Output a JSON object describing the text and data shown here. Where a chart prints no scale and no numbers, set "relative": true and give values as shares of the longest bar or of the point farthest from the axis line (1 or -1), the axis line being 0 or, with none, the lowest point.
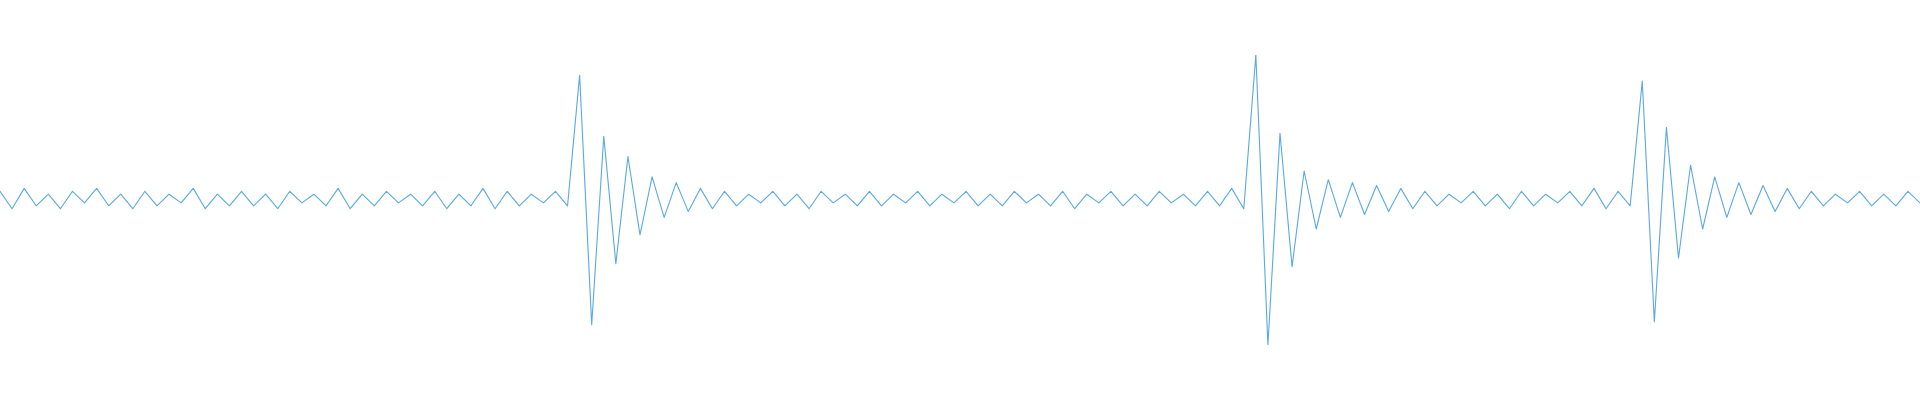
{
  "chart_data": {
    "type": "line",
    "relative": true,
    "categories": [
      null,
      null,
      null,
      null,
      null,
      null,
      null,
      null,
      null,
      null,
      null,
      null,
      null,
      null,
      null,
      null,
      null,
      null,
      null,
      null,
      null,
      null,
      null,
      null,
      null,
      null,
      null,
      null,
      null,
      null,
      null,
      null,
      null,
      null,
      null,
      null,
      null,
      null,
      null,
      null,
      null,
      null,
      null,
      null,
      null,
      null,
      null,
      null,
      null,
      null,
      null,
      null,
      null,
      null,
      null,
      null,
      null,
      null,
      null,
      null,
      null,
      null,
      null,
      null,
      null,
      null,
      null,
      null,
      null,
      null,
      null,
      null,
      null,
      null,
      null,
      null,
      null,
      null,
      null,
      null,
      null,
      null,
      null,
      null,
      null,
      null,
      null,
      null,
      null,
      null,
      null,
      null,
      null,
      null,
      null,
      null,
      null,
      null,
      null,
      null,
      null,
      null,
      null,
      null,
      null,
      null,
      null,
      null,
      null,
      null,
      null,
      null,
      null,
      null,
      null,
      null,
      null,
      null,
      null,
      null,
      null,
      null,
      null,
      null,
      null,
      null,
      null,
      null,
      null,
      null,
      null,
      null,
      null,
      null,
      null,
      null,
      null,
      null,
      null,
      null,
      null,
      null,
      null,
      null,
      null,
      null,
      null,
      null,
      null,
      null,
      null,
      null,
      null,
      null,
      null,
      null,
      null,
      null,
      null,
      null
    ],
    "series": [
      {
        "color": "#5aa9e6",
        "values": [
          0.53,
          0.47,
          0.54,
          0.48,
          0.52,
          0.47,
          0.53,
          0.49,
          0.54,
          0.48,
          0.52,
          0.47,
          0.53,
          0.48,
          0.52,
          0.49,
          0.54,
          0.47,
          0.52,
          0.48,
          0.53,
          0.48,
          0.52,
          0.47,
          0.53,
          0.49,
          0.52,
          0.48,
          0.54,
          0.47,
          0.52,
          0.48,
          0.53,
          0.49,
          0.52,
          0.48,
          0.53,
          0.47,
          0.52,
          0.48,
          0.54,
          0.47,
          0.53,
          0.48,
          0.52,
          0.49,
          0.53,
          0.48,
          0.93,
          0.07,
          0.72,
          0.28,
          0.65,
          0.38,
          0.58,
          0.44,
          0.56,
          0.46,
          0.54,
          0.47,
          0.53,
          0.48,
          0.52,
          0.49,
          0.53,
          0.48,
          0.52,
          0.47,
          0.53,
          0.49,
          0.52,
          0.48,
          0.53,
          0.48,
          0.52,
          0.49,
          0.53,
          0.48,
          0.52,
          0.49,
          0.53,
          0.48,
          0.52,
          0.48,
          0.53,
          0.49,
          0.52,
          0.48,
          0.53,
          0.47,
          0.52,
          0.49,
          0.53,
          0.48,
          0.52,
          0.48,
          0.53,
          0.49,
          0.52,
          0.48,
          0.53,
          0.48,
          0.54,
          0.47,
          1.0,
          0.0,
          0.73,
          0.27,
          0.6,
          0.4,
          0.57,
          0.44,
          0.56,
          0.45,
          0.55,
          0.46,
          0.54,
          0.47,
          0.53,
          0.48,
          0.52,
          0.49,
          0.53,
          0.48,
          0.52,
          0.47,
          0.53,
          0.48,
          0.52,
          0.49,
          0.53,
          0.48,
          0.54,
          0.47,
          0.53,
          0.48,
          0.91,
          0.08,
          0.75,
          0.3,
          0.62,
          0.4,
          0.58,
          0.44,
          0.56,
          0.45,
          0.55,
          0.46,
          0.54,
          0.47,
          0.53,
          0.48,
          0.52,
          0.49,
          0.53,
          0.48,
          0.52,
          0.48,
          0.53,
          0.49
        ]
      }
    ]
  }
}
